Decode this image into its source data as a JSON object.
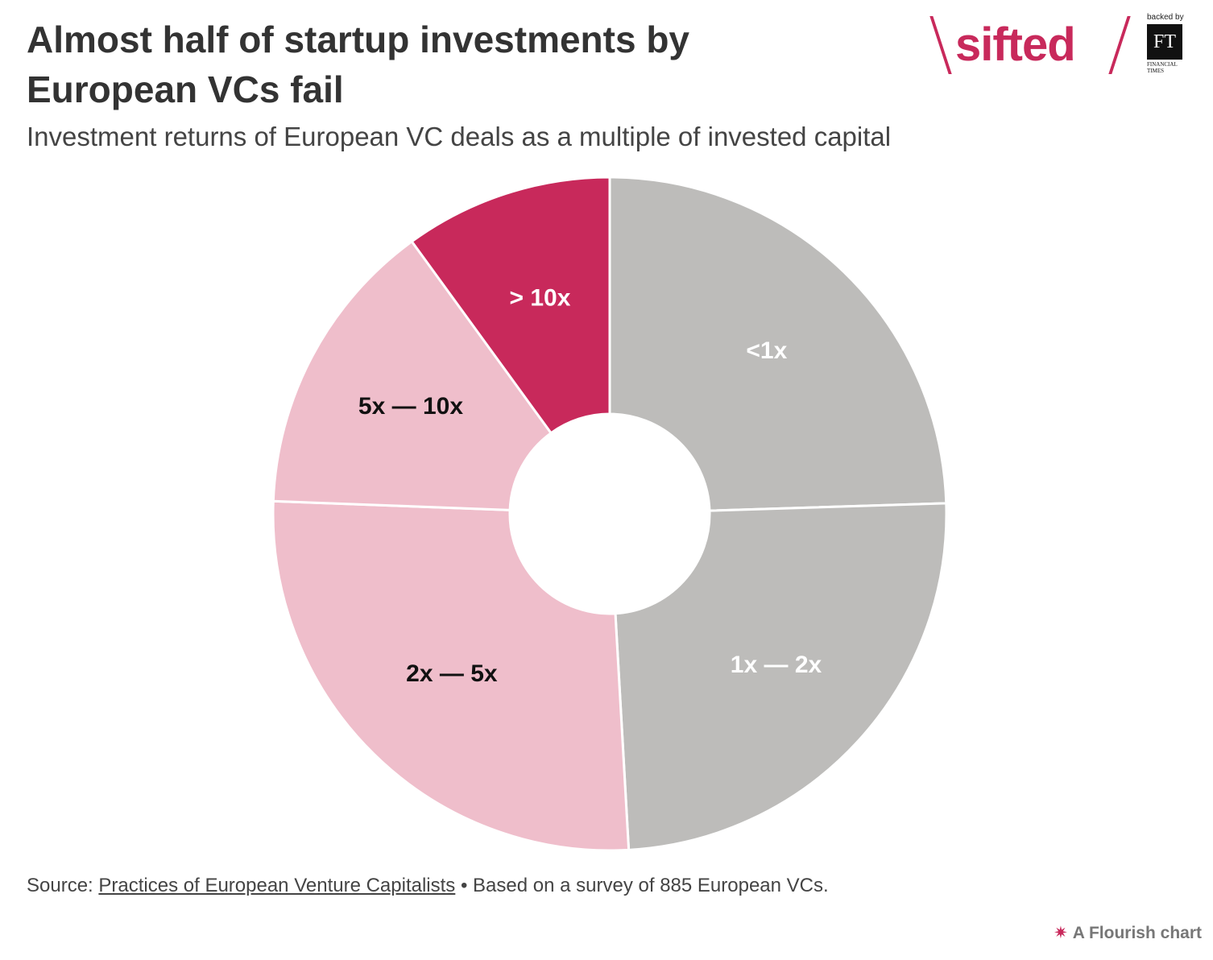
{
  "header": {
    "title": "Almost half of startup investments by European VCs fail",
    "subtitle": "Investment returns of European VC deals as a multiple of invested capital"
  },
  "logo": {
    "brand": "sifted",
    "backed_by": "backed by",
    "ft_mark": "FT",
    "ft_name": "FINANCIAL TIMES"
  },
  "footer": {
    "source_prefix": "Source: ",
    "source_link": "Practices of European Venture Capitalists",
    "source_suffix": " • Based on a survey of 885 European VCs.",
    "credit": "A Flourish chart"
  },
  "colors": {
    "grey": "#bdbcba",
    "light_pink": "#efbecb",
    "crimson": "#c8295b",
    "label_light": "#ffffff",
    "label_dark": "#111111"
  },
  "chart_data": {
    "type": "pie",
    "style": "donut",
    "title": "Almost half of startup investments by European VCs fail",
    "subtitle": "Investment returns of European VC deals as a multiple of invested capital",
    "unit": "share of deals (%)",
    "slices": [
      {
        "label": "<1x",
        "value": 24.5,
        "color": "#bdbcba",
        "label_color": "#ffffff"
      },
      {
        "label": "1x — 2x",
        "value": 24.6,
        "color": "#bdbcba",
        "label_color": "#ffffff"
      },
      {
        "label": "2x — 5x",
        "value": 26.5,
        "color": "#efbecb",
        "label_color": "#111111"
      },
      {
        "label": "5x — 10x",
        "value": 14.4,
        "color": "#efbecb",
        "label_color": "#111111"
      },
      {
        "label": "> 10x",
        "value": 10.0,
        "color": "#c8295b",
        "label_color": "#ffffff"
      }
    ]
  }
}
